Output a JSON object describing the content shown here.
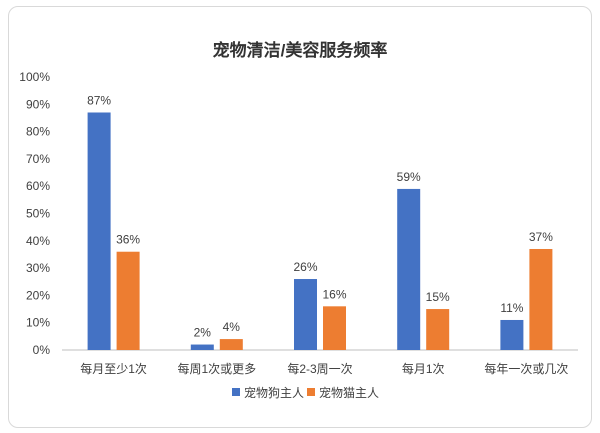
{
  "chart_data": {
    "type": "bar",
    "title": "宠物清洁/美容服务频率",
    "categories": [
      "每月至少1次",
      "每周1次或更多",
      "每2-3周一次",
      "每月1次",
      "每年一次或几次"
    ],
    "series": [
      {
        "name": "宠物狗主人",
        "values": [
          87,
          2,
          26,
          59,
          11
        ],
        "labels": [
          "87%",
          "2%",
          "26%",
          "59%",
          "11%"
        ]
      },
      {
        "name": "宠物猫主人",
        "values": [
          36,
          4,
          16,
          15,
          37
        ],
        "labels": [
          "36%",
          "4%",
          "16%",
          "15%",
          "37%"
        ]
      }
    ],
    "ylim": [
      0,
      100
    ],
    "yticks": [
      0,
      10,
      20,
      30,
      40,
      50,
      60,
      70,
      80,
      90,
      100
    ],
    "ytick_labels": [
      "0%",
      "10%",
      "20%",
      "30%",
      "40%",
      "50%",
      "60%",
      "70%",
      "80%",
      "90%",
      "100%"
    ],
    "grid": false,
    "legend_position": "bottom",
    "colors": [
      "#4472c4",
      "#ed7d31"
    ]
  }
}
